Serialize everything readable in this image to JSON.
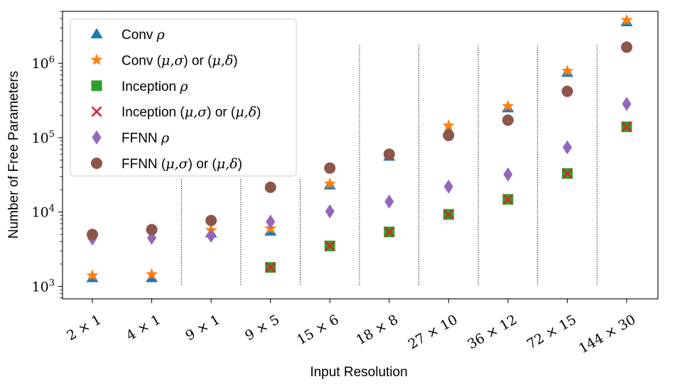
{
  "chart_data": {
    "type": "scatter",
    "xlabel": "Input Resolution",
    "ylabel": "Number of Free Parameters",
    "categories": [
      "2 × 1",
      "4 × 1",
      "9 × 1",
      "9 × 5",
      "15 × 6",
      "18 × 8",
      "27 × 10",
      "36 × 12",
      "72 × 15",
      "144 × 30"
    ],
    "yscale": "log",
    "ylim": [
      680,
      5000000
    ],
    "yticks": [
      {
        "value": 1000,
        "base": "10",
        "exp": "3"
      },
      {
        "value": 10000,
        "base": "10",
        "exp": "4"
      },
      {
        "value": 100000,
        "base": "10",
        "exp": "5"
      },
      {
        "value": 1000000,
        "base": "10",
        "exp": "6"
      }
    ],
    "grid": false,
    "legend_position": "top-left",
    "series": [
      {
        "name": "Conv ρ",
        "marker": "triangle",
        "color": "#1f77b4",
        "values": [
          1300,
          1300,
          5200,
          5500,
          23000,
          56000,
          125000,
          250000,
          750000,
          3600000
        ]
      },
      {
        "name": "Conv (μ,σ) or (μ,δ)",
        "marker": "star",
        "color": "#ff7f0e",
        "values": [
          1400,
          1450,
          5700,
          6000,
          24000,
          60000,
          145000,
          265000,
          790000,
          3800000
        ]
      },
      {
        "name": "Inception ρ",
        "marker": "square",
        "color": "#2ca02c",
        "values": [
          null,
          null,
          null,
          1800,
          3500,
          5400,
          9300,
          14800,
          33000,
          140000
        ]
      },
      {
        "name": "Inception (μ,σ) or (μ,δ)",
        "marker": "x",
        "color": "#d62728",
        "values": [
          null,
          null,
          null,
          1800,
          3500,
          5400,
          9300,
          14800,
          33000,
          140000
        ]
      },
      {
        "name": "FFNN ρ",
        "marker": "diamond",
        "color": "#9467bd",
        "values": [
          4400,
          4500,
          4800,
          7400,
          10200,
          13800,
          22000,
          32000,
          74000,
          285000
        ]
      },
      {
        "name": "FFNN (μ,σ) or (μ,δ)",
        "marker": "circle",
        "color": "#8c564b",
        "values": [
          5000,
          5800,
          7700,
          21500,
          39000,
          60000,
          107000,
          172000,
          420000,
          1650000
        ]
      }
    ],
    "legend_labels": [
      {
        "pre": "Conv ",
        "math": "ρ",
        "mid": "",
        "math2": "",
        "post": ""
      },
      {
        "pre": "Conv (",
        "math": "μ,σ",
        "mid": ") or (",
        "math2": "μ,δ",
        "post": ")"
      },
      {
        "pre": "Inception ",
        "math": "ρ",
        "mid": "",
        "math2": "",
        "post": ""
      },
      {
        "pre": "Inception (",
        "math": "μ,σ",
        "mid": ") or (",
        "math2": "μ,δ",
        "post": ")"
      },
      {
        "pre": "FFNN ",
        "math": "ρ",
        "mid": "",
        "math2": "",
        "post": ""
      },
      {
        "pre": "FFNN (",
        "math": "μ,σ",
        "mid": ") or (",
        "math2": "μ,δ",
        "post": ")"
      }
    ]
  }
}
